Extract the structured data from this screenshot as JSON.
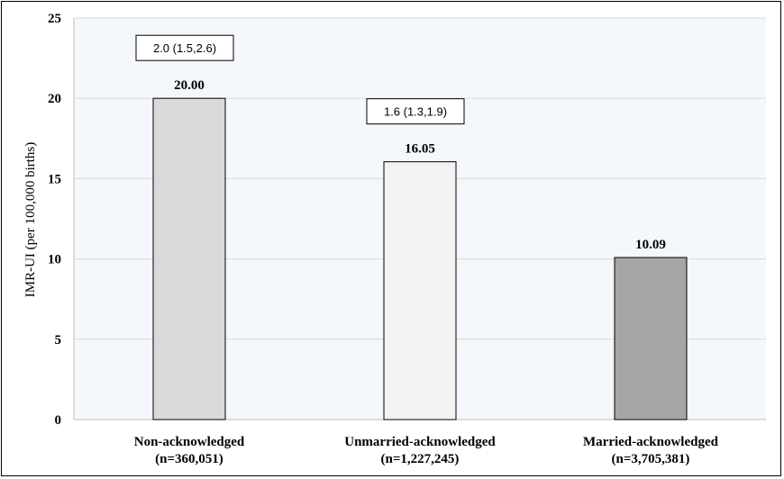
{
  "chart_data": {
    "type": "bar",
    "categories": [
      "Non-acknowledged",
      "Unmarried-acknowledged",
      "Married-acknowledged"
    ],
    "category_counts": [
      "(n=360,051)",
      "(n=1,227,245)",
      "(n=3,705,381)"
    ],
    "values": [
      20.0,
      16.05,
      10.09
    ],
    "value_labels": [
      "20.00",
      "16.05",
      "10.09"
    ],
    "annotations": [
      "2.0 (1.5,2.6)",
      "1.6 (1.3,1.9)",
      ""
    ],
    "bar_colors": [
      "#d9d9d9",
      "#f2f2f2",
      "#a6a6a6"
    ],
    "title": "",
    "xlabel": "",
    "ylabel": "IMR-UI (per 100,000 births)",
    "ylim": [
      0,
      25
    ],
    "yticks": [
      "0",
      "5",
      "10",
      "15",
      "20",
      "25"
    ],
    "ytick_values": [
      0,
      5,
      10,
      15,
      20,
      25
    ],
    "grid": true,
    "plot_background": "#f4f7fb",
    "grid_color": "#d9d9d9"
  }
}
